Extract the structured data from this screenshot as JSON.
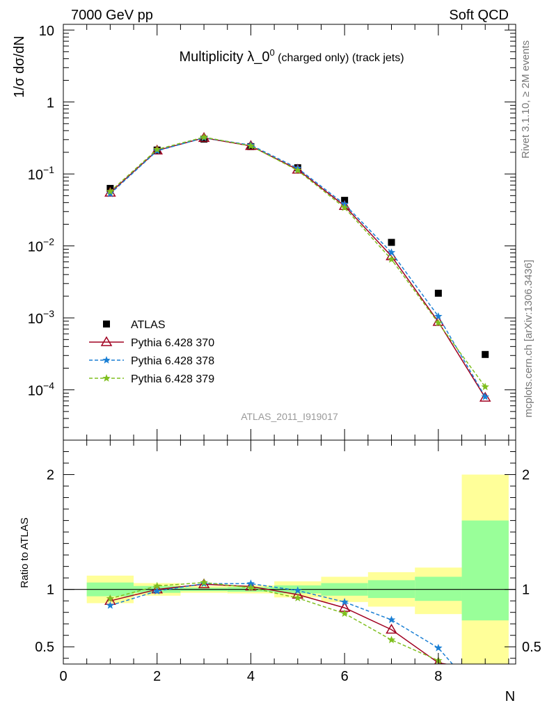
{
  "header": {
    "left": "7000 GeV pp",
    "right": "Soft QCD"
  },
  "side_labels": {
    "rivet": "Rivet 3.1.10, ≥ 2M events",
    "mcplots": "mcplots.cern.ch [arXiv:1306.3436]"
  },
  "title": {
    "main": "Multiplicity λ_0",
    "sup": "0",
    "sub": " (charged only) (track jets)"
  },
  "watermark": "ATLAS_2011_I919017",
  "chart_data": [
    {
      "type": "scatter",
      "panel": "main",
      "ylabel": "1/σ dσ/dN",
      "yscale": "log",
      "ylim": [
        2e-05,
        12
      ],
      "xlim": [
        0,
        9.65
      ],
      "yticks": [
        {
          "value": 10,
          "mant": "10",
          "exp": ""
        },
        {
          "value": 1,
          "mant": "1",
          "exp": ""
        },
        {
          "value": 0.1,
          "mant": "10",
          "exp": "−1"
        },
        {
          "value": 0.01,
          "mant": "10",
          "exp": "−2"
        },
        {
          "value": 0.001,
          "mant": "10",
          "exp": "−3"
        },
        {
          "value": 0.0001,
          "mant": "10",
          "exp": "−4"
        }
      ],
      "legend_position": "bottom-left",
      "series": [
        {
          "name": "ATLAS",
          "style": "data",
          "color": "#000000",
          "marker": "square",
          "x": [
            1,
            2,
            3,
            4,
            5,
            6,
            7,
            8,
            9
          ],
          "y": [
            0.063,
            0.215,
            0.305,
            0.24,
            0.122,
            0.043,
            0.0112,
            0.0022,
            0.00031
          ]
        },
        {
          "name": "Pythia 6.428 370",
          "style": "solid",
          "color": "#a00020",
          "marker": "triangle",
          "x": [
            1,
            2,
            3,
            4,
            5,
            6,
            7,
            8,
            9
          ],
          "y": [
            0.055,
            0.212,
            0.317,
            0.245,
            0.115,
            0.036,
            0.0072,
            0.00088,
            7.8e-05
          ]
        },
        {
          "name": "Pythia 6.428 378",
          "style": "dashed",
          "color": "#1a7fd4",
          "marker": "star",
          "x": [
            1,
            2,
            3,
            4,
            5,
            6,
            7,
            8,
            9
          ],
          "y": [
            0.053,
            0.209,
            0.318,
            0.252,
            0.12,
            0.038,
            0.0081,
            0.00105,
            8e-05
          ]
        },
        {
          "name": "Pythia 6.428 379",
          "style": "dashed",
          "color": "#7fbf1f",
          "marker": "star",
          "x": [
            1,
            2,
            3,
            4,
            5,
            6,
            7,
            8,
            9
          ],
          "y": [
            0.057,
            0.219,
            0.325,
            0.245,
            0.112,
            0.034,
            0.0065,
            0.00085,
            0.00011
          ]
        }
      ]
    },
    {
      "type": "scatter",
      "panel": "ratio",
      "ylabel": "Ratio to ATLAS",
      "xlabel": "N",
      "xlim": [
        0,
        9.65
      ],
      "ylim": [
        0.35,
        2.3
      ],
      "xticks": [
        0,
        2,
        4,
        6,
        8
      ],
      "yticks": [
        0.5,
        1,
        2
      ],
      "reference_line": 1,
      "bands": {
        "x_low": [
          0.5,
          1.5,
          2.5,
          3.5,
          4.5,
          5.5,
          6.5,
          7.5,
          8.5
        ],
        "x_high": [
          1.5,
          2.5,
          3.5,
          4.5,
          5.5,
          6.5,
          7.5,
          8.5,
          9.5
        ],
        "green_low": [
          0.94,
          0.97,
          0.985,
          0.98,
          0.965,
          0.945,
          0.925,
          0.9,
          0.73
        ],
        "green_high": [
          1.06,
          1.03,
          1.015,
          1.02,
          1.035,
          1.055,
          1.08,
          1.11,
          1.6
        ],
        "yellow_low": [
          0.88,
          0.945,
          0.97,
          0.965,
          0.93,
          0.89,
          0.85,
          0.785,
          0.35
        ],
        "yellow_high": [
          1.12,
          1.055,
          1.03,
          1.035,
          1.07,
          1.11,
          1.15,
          1.19,
          2.0
        ]
      },
      "series": [
        {
          "name": "Pythia 6.428 370",
          "color": "#a00020",
          "style": "solid",
          "marker": "triangle",
          "x": [
            1,
            2,
            3,
            4,
            5,
            6,
            7,
            8,
            8.9
          ],
          "y": [
            0.9,
            1.0,
            1.045,
            1.025,
            0.955,
            0.84,
            0.65,
            0.36,
            0.3
          ]
        },
        {
          "name": "Pythia 6.428 378",
          "color": "#1a7fd4",
          "style": "dashed",
          "marker": "star",
          "x": [
            1,
            2,
            3,
            4,
            5,
            6,
            7,
            8,
            8.3
          ],
          "y": [
            0.86,
            0.985,
            1.05,
            1.05,
            0.99,
            0.89,
            0.735,
            0.49,
            0.35
          ]
        },
        {
          "name": "Pythia 6.428 379",
          "color": "#7fbf1f",
          "style": "dashed",
          "marker": "star",
          "x": [
            1,
            2,
            3,
            4,
            5,
            6,
            7,
            8,
            8.1
          ],
          "y": [
            0.92,
            1.03,
            1.06,
            1.015,
            0.925,
            0.79,
            0.56,
            0.38,
            0.35
          ]
        }
      ]
    }
  ]
}
